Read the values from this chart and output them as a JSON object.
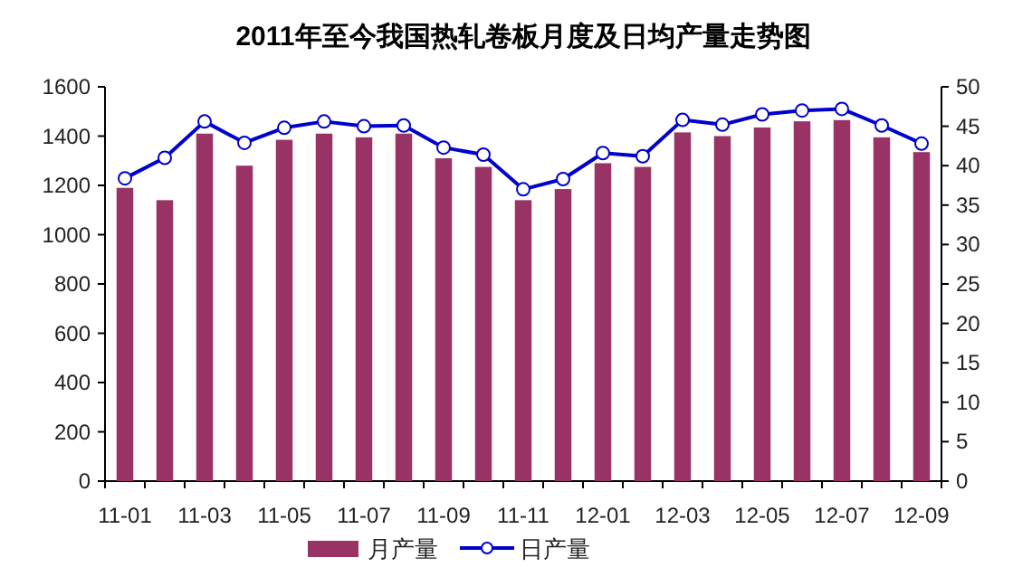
{
  "chart_data": {
    "type": "bar",
    "title": "2011年至今我国热轧卷板月度及日均产量走势图",
    "categories": [
      "11-01",
      null,
      "11-03",
      null,
      "11-05",
      null,
      "11-07",
      null,
      "11-09",
      null,
      "11-11",
      null,
      "12-01",
      null,
      "12-03",
      null,
      "12-05",
      null,
      "12-07",
      null,
      "12-09"
    ],
    "series": [
      {
        "name": "月产量",
        "color": "#993366",
        "values": [
          1190,
          1140,
          1410,
          1280,
          1385,
          1410,
          1395,
          1410,
          1310,
          1275,
          1140,
          1185,
          1290,
          1275,
          1415,
          1400,
          1435,
          1460,
          1465,
          1395,
          1335
        ]
      },
      {
        "name": "日产量",
        "type": "line",
        "axis": "y2",
        "color": "#0000cc",
        "marker": "circle",
        "values": [
          38.4,
          41,
          45.6,
          42.9,
          44.8,
          45.6,
          45,
          45.1,
          42.3,
          41.4,
          37,
          38.3,
          41.6,
          41.2,
          45.8,
          45.2,
          46.5,
          47,
          47.2,
          45.1,
          42.8
        ]
      }
    ],
    "ylim": [
      0,
      1600
    ],
    "yticks": [
      0,
      200,
      400,
      600,
      800,
      1000,
      1200,
      1400,
      1600
    ],
    "y2lim": [
      0,
      50
    ],
    "y2ticks": [
      0,
      5,
      10,
      15,
      20,
      25,
      30,
      35,
      40,
      45,
      50
    ],
    "legend": "bottom",
    "grid": false
  }
}
